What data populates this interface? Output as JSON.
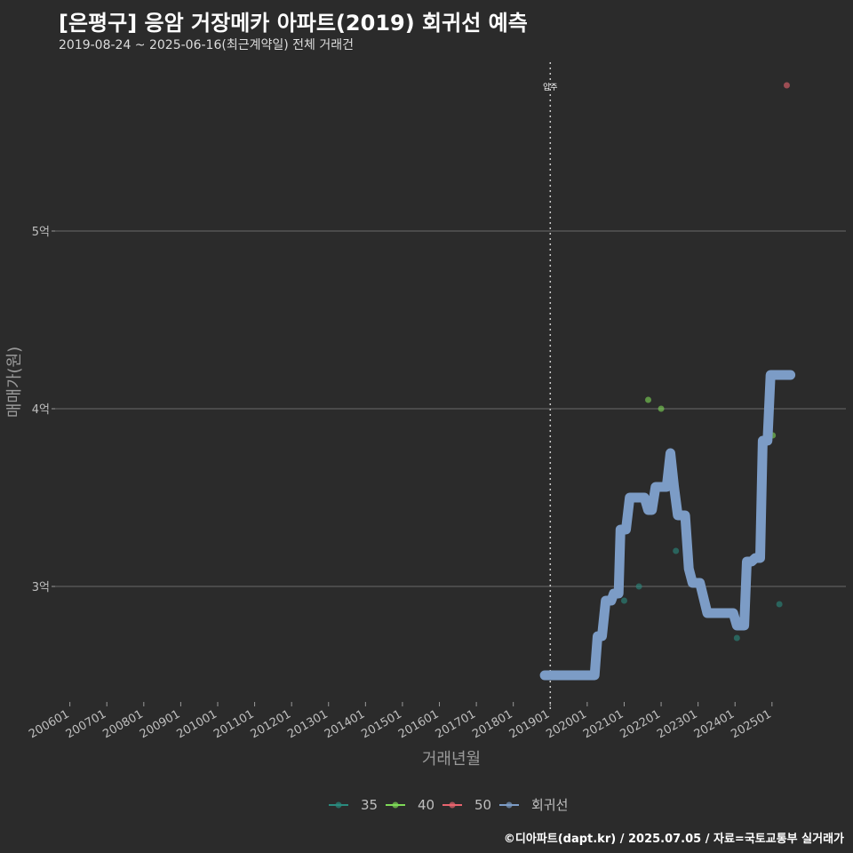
{
  "header": {
    "title": "[은평구] 응암 거장메카 아파트(2019) 회귀선 예측",
    "subtitle": "2019-08-24 ~ 2025-06-16(최근계약일) 전체 거래건"
  },
  "footer": {
    "credit": "©디아파트(dapt.kr) / 2025.07.05 / 자료=국토교통부 실거래가"
  },
  "colors": {
    "background": "#2b2b2b",
    "grid": "#6a6a6a",
    "s35": "#2a8a7e",
    "s40": "#7ed957",
    "s50": "#e8646e",
    "regression": "#7c9cc6",
    "event_line": "#cccccc"
  },
  "chart_data": {
    "type": "scatter",
    "title": "[은평구] 응암 거장메카 아파트(2019) 회귀선 예측",
    "xlabel": "거래년월",
    "ylabel": "매매가(원)",
    "x_ticks": [
      "200601",
      "200701",
      "200801",
      "200901",
      "201001",
      "201101",
      "201201",
      "201301",
      "201401",
      "201501",
      "201601",
      "201701",
      "201801",
      "201901",
      "202001",
      "202101",
      "202201",
      "202301",
      "202401",
      "202501"
    ],
    "x_range": [
      2005.6,
      2027.0
    ],
    "y_ticks": [
      {
        "value": 3.0,
        "label": "3억"
      },
      {
        "value": 4.0,
        "label": "4억"
      },
      {
        "value": 5.0,
        "label": "5억"
      }
    ],
    "y_range": [
      2.35,
      5.95
    ],
    "event": {
      "x": 2019.0,
      "label": "입주"
    },
    "series": [
      {
        "name": "35",
        "points": [
          [
            2021.0,
            2.92
          ],
          [
            2021.4,
            3.0
          ],
          [
            2022.4,
            3.2
          ],
          [
            2024.05,
            2.71
          ],
          [
            2025.2,
            2.9
          ]
        ]
      },
      {
        "name": "40",
        "points": [
          [
            2021.65,
            4.05
          ],
          [
            2022.0,
            4.0
          ],
          [
            2025.02,
            3.85
          ]
        ]
      },
      {
        "name": "50",
        "points": [
          [
            2025.4,
            5.82
          ]
        ]
      }
    ],
    "regression": {
      "name": "회귀선",
      "points": [
        [
          2018.85,
          2.5
        ],
        [
          2020.2,
          2.5
        ],
        [
          2020.28,
          2.72
        ],
        [
          2020.4,
          2.72
        ],
        [
          2020.5,
          2.92
        ],
        [
          2020.65,
          2.92
        ],
        [
          2020.72,
          2.96
        ],
        [
          2020.85,
          2.96
        ],
        [
          2020.9,
          3.32
        ],
        [
          2021.05,
          3.32
        ],
        [
          2021.15,
          3.5
        ],
        [
          2021.55,
          3.5
        ],
        [
          2021.65,
          3.43
        ],
        [
          2021.75,
          3.43
        ],
        [
          2021.85,
          3.56
        ],
        [
          2022.05,
          3.56
        ],
        [
          2022.15,
          3.56
        ],
        [
          2022.25,
          3.75
        ],
        [
          2022.35,
          3.56
        ],
        [
          2022.45,
          3.4
        ],
        [
          2022.65,
          3.4
        ],
        [
          2022.75,
          3.1
        ],
        [
          2022.85,
          3.02
        ],
        [
          2023.05,
          3.02
        ],
        [
          2023.25,
          2.85
        ],
        [
          2023.95,
          2.85
        ],
        [
          2024.05,
          2.78
        ],
        [
          2024.25,
          2.78
        ],
        [
          2024.32,
          3.14
        ],
        [
          2024.45,
          3.14
        ],
        [
          2024.55,
          3.16
        ],
        [
          2024.68,
          3.16
        ],
        [
          2024.75,
          3.82
        ],
        [
          2024.88,
          3.82
        ],
        [
          2024.96,
          4.19
        ],
        [
          2025.5,
          4.19
        ]
      ]
    },
    "legend": [
      {
        "name": "35",
        "color_key": "s35"
      },
      {
        "name": "40",
        "color_key": "s40"
      },
      {
        "name": "50",
        "color_key": "s50"
      },
      {
        "name": "회귀선",
        "color_key": "regression"
      }
    ],
    "legend_position": "bottom"
  }
}
